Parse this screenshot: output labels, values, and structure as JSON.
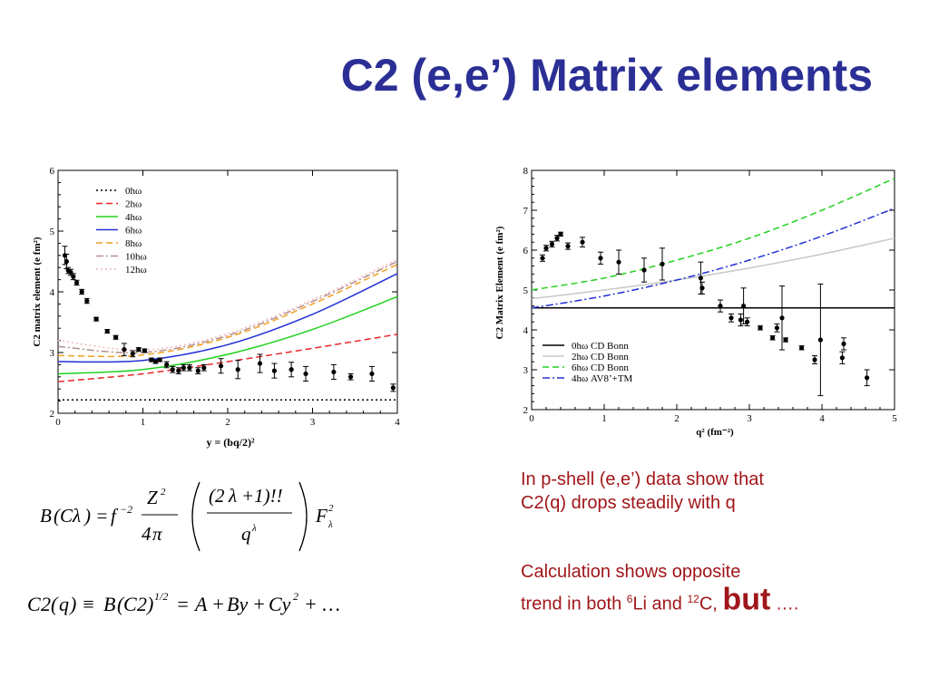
{
  "slide": {
    "title": "C2 (e,e’) Matrix elements",
    "note1_line1": "In p-shell (e,e’) data show that",
    "note1_line2": "C2(q) drops steadily with q",
    "note2_line1": "Calculation shows opposite",
    "note2_line2_pre": "trend in both ",
    "note2_sup1": "6",
    "note2_mid1": "Li and ",
    "note2_sup2": "12",
    "note2_mid2": "C, ",
    "note2_big": "but",
    "note2_end": " ….",
    "formula1": "B(Cλ) = f⁻² (Z²/4π)((2λ+1)!!/q^λ) F²λ",
    "formula2": "C2(q) ≡ B(C2)^1/2 = A + By + Cy² + …"
  },
  "colors": {
    "title": "#2b2f95",
    "notes": "#a0161a",
    "black": "#000000",
    "red": "#e8272b",
    "green": "#22d21e",
    "blue": "#2230d4",
    "orange": "#f2a020",
    "mauve": "#b38f8f",
    "pink": "#f4b9b9",
    "gray": "#c8c8c8"
  },
  "chart_data": [
    {
      "type": "scatter",
      "xlabel": "y = (bq/2)²",
      "ylabel": "C2 matrix element (e fm²)",
      "xlim": [
        0,
        4
      ],
      "ylim": [
        2,
        6
      ],
      "xticks": [
        "0",
        "1",
        "2",
        "3",
        "4"
      ],
      "yticks": [
        "2",
        "3",
        "4",
        "5",
        "6"
      ],
      "legend_position": "top-left",
      "legend": [
        "0hω",
        "2hω",
        "4hω",
        "6hω",
        "8hω",
        "10hω",
        "12hω"
      ],
      "series": [
        {
          "name": "0hω",
          "style": "dotted",
          "color": "#000000",
          "x": [
            0,
            4
          ],
          "y": [
            2.22,
            2.22
          ]
        },
        {
          "name": "2hω",
          "style": "dashed",
          "color": "#e8272b",
          "x": [
            0,
            1,
            2,
            3,
            4
          ],
          "y": [
            2.52,
            2.65,
            2.85,
            3.07,
            3.3
          ]
        },
        {
          "name": "4hω",
          "style": "solid",
          "color": "#22d21e",
          "x": [
            0,
            1,
            2,
            3,
            4
          ],
          "y": [
            2.65,
            2.72,
            2.97,
            3.38,
            3.92
          ]
        },
        {
          "name": "6hω",
          "style": "solid",
          "color": "#2230d4",
          "x": [
            0,
            1,
            2,
            3,
            4
          ],
          "y": [
            2.85,
            2.87,
            3.13,
            3.63,
            4.3
          ]
        },
        {
          "name": "8hω",
          "style": "dashed",
          "color": "#f2a020",
          "x": [
            0,
            1,
            2,
            3,
            4
          ],
          "y": [
            2.95,
            2.96,
            3.25,
            3.8,
            4.45
          ]
        },
        {
          "name": "10hω",
          "style": "dashdot",
          "color": "#b38f8f",
          "x": [
            0,
            1,
            2,
            3,
            4
          ],
          "y": [
            3.1,
            3.0,
            3.28,
            3.84,
            4.5
          ]
        },
        {
          "name": "12hω",
          "style": "dotted",
          "color": "#f4b9b9",
          "x": [
            0,
            1,
            2,
            3,
            4
          ],
          "y": [
            3.2,
            3.04,
            3.31,
            3.87,
            4.53
          ]
        }
      ],
      "points": {
        "x": [
          0.08,
          0.1,
          0.12,
          0.15,
          0.18,
          0.22,
          0.28,
          0.34,
          0.45,
          0.58,
          0.68,
          0.78,
          0.88,
          0.95,
          1.02,
          1.1,
          1.15,
          1.2,
          1.28,
          1.35,
          1.42,
          1.48,
          1.55,
          1.65,
          1.72,
          1.92,
          2.12,
          2.38,
          2.55,
          2.75,
          2.92,
          3.25,
          3.45,
          3.7,
          3.95
        ],
        "y": [
          4.6,
          4.5,
          4.35,
          4.32,
          4.25,
          4.15,
          4.0,
          3.85,
          3.55,
          3.35,
          3.25,
          3.05,
          2.98,
          3.05,
          3.03,
          2.88,
          2.85,
          2.88,
          2.8,
          2.72,
          2.7,
          2.75,
          2.75,
          2.7,
          2.75,
          2.78,
          2.72,
          2.82,
          2.7,
          2.72,
          2.65,
          2.68,
          2.6,
          2.65,
          2.42
        ],
        "err": [
          0.15,
          0.12,
          0.05,
          0.05,
          0.05,
          0.04,
          0.04,
          0.04,
          0.03,
          0.03,
          0.03,
          0.1,
          0.05,
          0.03,
          0.03,
          0.03,
          0.03,
          0.03,
          0.05,
          0.05,
          0.05,
          0.05,
          0.05,
          0.05,
          0.05,
          0.12,
          0.15,
          0.15,
          0.12,
          0.12,
          0.12,
          0.12,
          0.05,
          0.12,
          0.06
        ]
      }
    },
    {
      "type": "scatter",
      "xlabel": "q² (fm⁻²)",
      "ylabel": "C2 Matrix Element (e fm²)",
      "xlim": [
        0,
        5
      ],
      "ylim": [
        2,
        8
      ],
      "xticks": [
        "0",
        "1",
        "2",
        "3",
        "4",
        "5"
      ],
      "yticks": [
        "2",
        "3",
        "4",
        "5",
        "6",
        "7",
        "8"
      ],
      "legend_position": "bottom-right",
      "legend": [
        "0hω CD Bonn",
        "2hω CD Bonn",
        "6hω CD Bonn",
        "4hω AV8’+TM"
      ],
      "series": [
        {
          "name": "0hω CD Bonn",
          "style": "solid",
          "color": "#000000",
          "x": [
            0,
            5
          ],
          "y": [
            4.55,
            4.55
          ]
        },
        {
          "name": "2hω CD Bonn",
          "style": "solid",
          "color": "#c8c8c8",
          "x": [
            0,
            1,
            2,
            3,
            4,
            5
          ],
          "y": [
            4.78,
            5.0,
            5.25,
            5.55,
            5.9,
            6.3
          ]
        },
        {
          "name": "6hω CD Bonn",
          "style": "dashed",
          "color": "#22d21e",
          "x": [
            0,
            1,
            2,
            3,
            4,
            5
          ],
          "y": [
            5.0,
            5.3,
            5.75,
            6.3,
            7.0,
            7.8
          ]
        },
        {
          "name": "4hω AV8’+TM",
          "style": "dashdot",
          "color": "#2230d4",
          "x": [
            0,
            1,
            2,
            3,
            4,
            5
          ],
          "y": [
            4.55,
            4.85,
            5.25,
            5.75,
            6.35,
            7.05
          ]
        }
      ],
      "points": {
        "x": [
          0.15,
          0.2,
          0.28,
          0.35,
          0.4,
          0.5,
          0.7,
          0.95,
          1.2,
          1.55,
          1.8,
          2.33,
          2.35,
          2.6,
          2.75,
          2.88,
          2.92,
          2.97,
          3.15,
          3.32,
          3.38,
          3.45,
          3.5,
          3.72,
          3.9,
          3.98,
          4.28,
          4.3,
          4.62
        ],
        "y": [
          5.8,
          6.05,
          6.15,
          6.3,
          6.4,
          6.1,
          6.2,
          5.8,
          5.7,
          5.5,
          5.65,
          5.3,
          5.05,
          4.6,
          4.3,
          4.25,
          4.6,
          4.2,
          4.05,
          3.8,
          4.05,
          4.3,
          3.75,
          3.55,
          3.25,
          3.75,
          3.3,
          3.65,
          2.8
        ],
        "err": [
          0.08,
          0.07,
          0.07,
          0.07,
          0.05,
          0.08,
          0.12,
          0.15,
          0.3,
          0.3,
          0.4,
          0.4,
          0.15,
          0.15,
          0.1,
          0.15,
          0.45,
          0.1,
          0.05,
          0.05,
          0.1,
          0.8,
          0.05,
          0.05,
          0.1,
          1.4,
          0.15,
          0.15,
          0.2
        ]
      }
    }
  ]
}
